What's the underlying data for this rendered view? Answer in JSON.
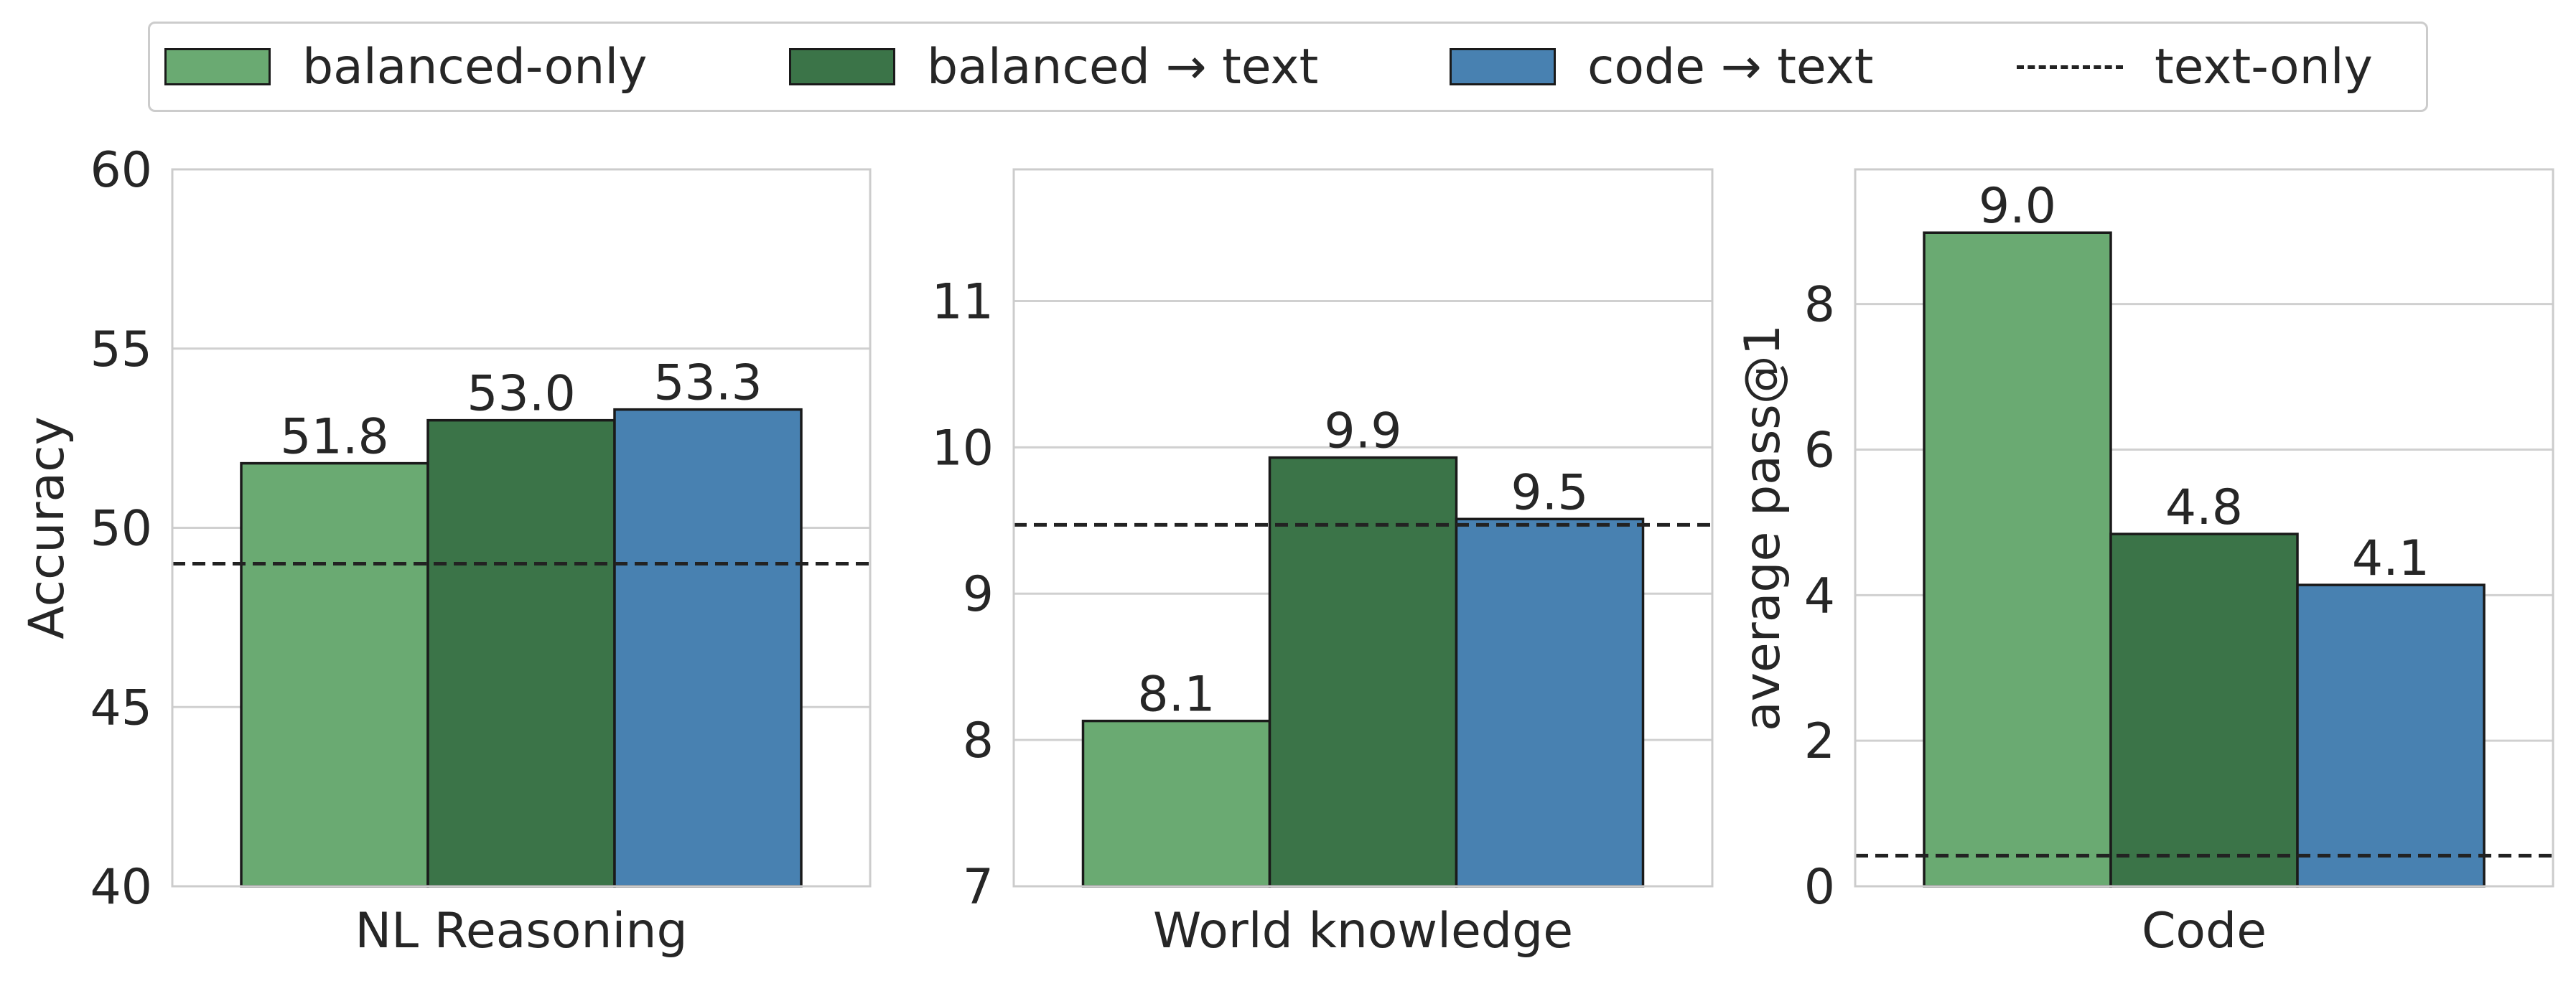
{
  "legend": {
    "entries": [
      {
        "label": "balanced-only",
        "kind": "bar",
        "color": "#6aaa72"
      },
      {
        "label": "balanced → text",
        "kind": "bar",
        "color": "#3b7448"
      },
      {
        "label": "code → text",
        "kind": "bar",
        "color": "#4881b1"
      },
      {
        "label": "text-only",
        "kind": "line",
        "color": "#222222"
      }
    ]
  },
  "chart_data": [
    {
      "type": "bar",
      "categories": [
        "NL Reasoning"
      ],
      "series": [
        {
          "name": "balanced-only",
          "values": [
            51.8
          ],
          "color": "#6aaa72"
        },
        {
          "name": "balanced → text",
          "values": [
            53.0
          ],
          "color": "#3b7448"
        },
        {
          "name": "code → text",
          "values": [
            53.3
          ],
          "color": "#4881b1"
        }
      ],
      "reference_line": {
        "name": "text-only",
        "value": 49.0,
        "style": "dashed"
      },
      "data_labels": [
        "51.8",
        "53.0",
        "53.3"
      ],
      "xlabel": "",
      "ylabel": "Accuracy",
      "ylim": [
        40,
        60
      ],
      "yticks": [
        40,
        45,
        50,
        55,
        60
      ],
      "grid": true
    },
    {
      "type": "bar",
      "categories": [
        "World knowledge"
      ],
      "series": [
        {
          "name": "balanced-only",
          "values": [
            8.13
          ],
          "color": "#6aaa72"
        },
        {
          "name": "balanced → text",
          "values": [
            9.93
          ],
          "color": "#3b7448"
        },
        {
          "name": "code → text",
          "values": [
            9.51
          ],
          "color": "#4881b1"
        }
      ],
      "reference_line": {
        "name": "text-only",
        "value": 9.47,
        "style": "dashed"
      },
      "data_labels": [
        "8.1",
        "9.9",
        "9.5"
      ],
      "xlabel": "",
      "ylabel": "",
      "ylim": [
        7,
        11.9
      ],
      "yticks": [
        7,
        8,
        9,
        10,
        11
      ],
      "grid": true
    },
    {
      "type": "bar",
      "categories": [
        "Code"
      ],
      "series": [
        {
          "name": "balanced-only",
          "values": [
            8.98
          ],
          "color": "#6aaa72"
        },
        {
          "name": "balanced → text",
          "values": [
            4.84
          ],
          "color": "#3b7448"
        },
        {
          "name": "code → text",
          "values": [
            4.14
          ],
          "color": "#4881b1"
        }
      ],
      "reference_line": {
        "name": "text-only",
        "value": 0.42,
        "style": "dashed"
      },
      "data_labels": [
        "9.0",
        "4.8",
        "4.1"
      ],
      "xlabel": "",
      "ylabel": "average pass@1",
      "ylim": [
        0,
        9.85
      ],
      "yticks": [
        0,
        2,
        4,
        6,
        8
      ],
      "grid": true
    }
  ]
}
